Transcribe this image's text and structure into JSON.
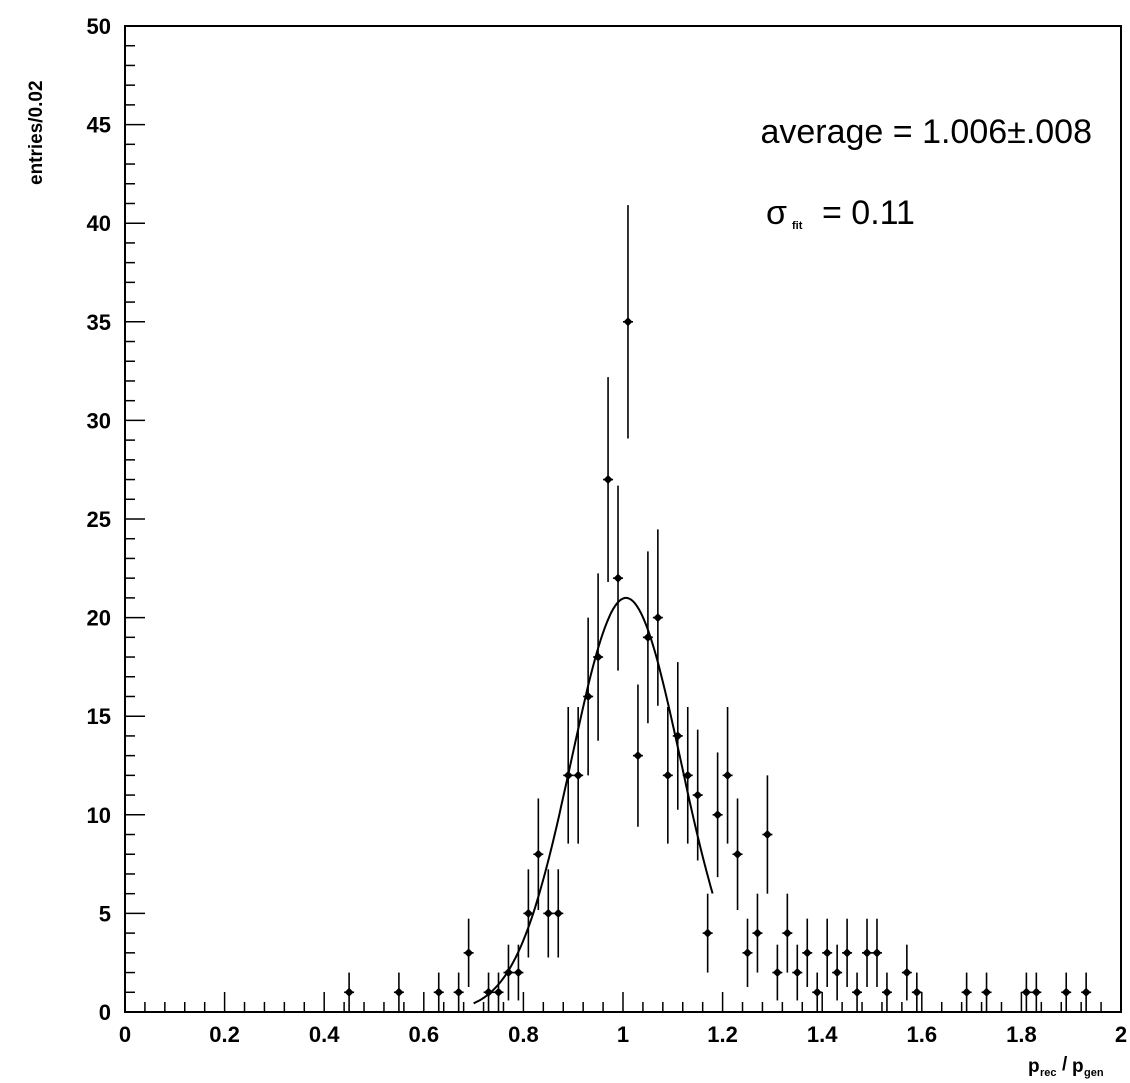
{
  "chart_data": {
    "type": "scatter",
    "ylabel": "entries/0.02",
    "xlabel": {
      "p1": "p",
      "sub1": "rec",
      "slash": "/",
      "p2": "p",
      "sub2": "gen"
    },
    "xlim": [
      0,
      2
    ],
    "ylim": [
      0,
      50
    ],
    "x_ticks": [
      "0",
      "0.2",
      "0.4",
      "0.6",
      "0.8",
      "1",
      "1.2",
      "1.4",
      "1.6",
      "1.8",
      "2"
    ],
    "y_ticks": [
      "0",
      "5",
      "10",
      "15",
      "20",
      "25",
      "30",
      "35",
      "40",
      "45",
      "50"
    ],
    "annotations": {
      "average": "average = 1.006±.008",
      "sigma_symbol": "σ",
      "sigma_sub": "fit",
      "sigma_value": "= 0.11"
    },
    "series": [
      {
        "points": [
          {
            "x": 0.45,
            "y": 1
          },
          {
            "x": 0.55,
            "y": 1
          },
          {
            "x": 0.63,
            "y": 1
          },
          {
            "x": 0.67,
            "y": 1
          },
          {
            "x": 0.69,
            "y": 3
          },
          {
            "x": 0.73,
            "y": 1
          },
          {
            "x": 0.75,
            "y": 1
          },
          {
            "x": 0.77,
            "y": 2
          },
          {
            "x": 0.79,
            "y": 2
          },
          {
            "x": 0.81,
            "y": 5
          },
          {
            "x": 0.83,
            "y": 8
          },
          {
            "x": 0.85,
            "y": 5
          },
          {
            "x": 0.87,
            "y": 5
          },
          {
            "x": 0.89,
            "y": 12
          },
          {
            "x": 0.91,
            "y": 12
          },
          {
            "x": 0.93,
            "y": 16
          },
          {
            "x": 0.95,
            "y": 18
          },
          {
            "x": 0.97,
            "y": 27
          },
          {
            "x": 0.99,
            "y": 22
          },
          {
            "x": 1.01,
            "y": 35
          },
          {
            "x": 1.03,
            "y": 13
          },
          {
            "x": 1.05,
            "y": 19
          },
          {
            "x": 1.07,
            "y": 20
          },
          {
            "x": 1.09,
            "y": 12
          },
          {
            "x": 1.11,
            "y": 14
          },
          {
            "x": 1.13,
            "y": 12
          },
          {
            "x": 1.15,
            "y": 11
          },
          {
            "x": 1.17,
            "y": 4
          },
          {
            "x": 1.19,
            "y": 10
          },
          {
            "x": 1.21,
            "y": 12
          },
          {
            "x": 1.23,
            "y": 8
          },
          {
            "x": 1.25,
            "y": 3
          },
          {
            "x": 1.27,
            "y": 4
          },
          {
            "x": 1.29,
            "y": 9
          },
          {
            "x": 1.31,
            "y": 2
          },
          {
            "x": 1.33,
            "y": 4
          },
          {
            "x": 1.35,
            "y": 2
          },
          {
            "x": 1.37,
            "y": 3
          },
          {
            "x": 1.39,
            "y": 1
          },
          {
            "x": 1.41,
            "y": 3
          },
          {
            "x": 1.43,
            "y": 2
          },
          {
            "x": 1.45,
            "y": 3
          },
          {
            "x": 1.47,
            "y": 1
          },
          {
            "x": 1.49,
            "y": 3
          },
          {
            "x": 1.51,
            "y": 3
          },
          {
            "x": 1.53,
            "y": 1
          },
          {
            "x": 1.57,
            "y": 2
          },
          {
            "x": 1.59,
            "y": 1
          },
          {
            "x": 1.69,
            "y": 1
          },
          {
            "x": 1.73,
            "y": 1
          },
          {
            "x": 1.81,
            "y": 1
          },
          {
            "x": 1.83,
            "y": 1
          },
          {
            "x": 1.89,
            "y": 1
          },
          {
            "x": 1.93,
            "y": 1
          }
        ]
      }
    ],
    "fit": {
      "type": "gaussian",
      "amplitude": 21,
      "mean": 1.006,
      "sigma": 0.11,
      "x_range": [
        0.7,
        1.18
      ]
    },
    "grid": false
  }
}
